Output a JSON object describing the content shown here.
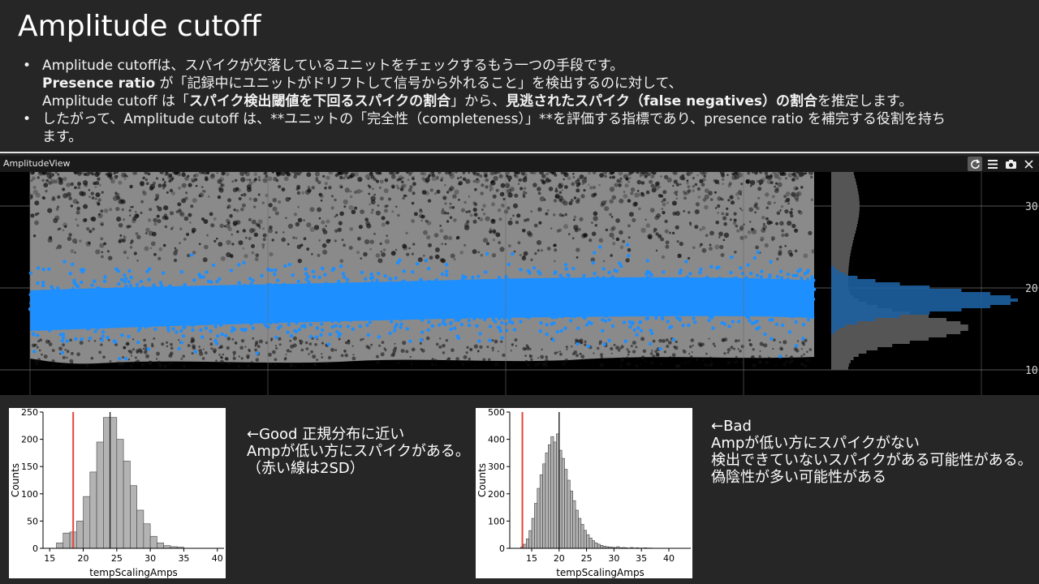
{
  "slide": {
    "title": "Amplitude cutoff",
    "bullets": [
      [
        [
          {
            "t": "Amplitude cutoffは、スパイクが欠落しているユニットをチェックするもう一つの手段です。",
            "b": false
          }
        ],
        [
          {
            "t": "Presence ratio",
            "b": true
          },
          {
            "t": " が「記録中にユニットがドリフトして信号から外れること」を検出するのに対して、",
            "b": false
          }
        ],
        [
          {
            "t": "Amplitude cutoff は「",
            "b": false
          },
          {
            "t": "スパイク検出閾値を下回るスパイクの割合",
            "b": true
          },
          {
            "t": "」から、",
            "b": false
          },
          {
            "t": "見逃されたスパイク（false negatives）の割合",
            "b": true
          },
          {
            "t": "を推定します。",
            "b": false
          }
        ]
      ],
      [
        [
          {
            "t": "したがって、Amplitude cutoff は、**ユニットの「完全性（completeness）」**を評価する指標であり、presence ratio を補完する役割を持ち",
            "b": false
          }
        ],
        [
          {
            "t": "ます。",
            "b": false
          }
        ]
      ]
    ]
  },
  "panel": {
    "title": "AmplitudeView",
    "icons": [
      "refresh-icon",
      "menu-icon",
      "camera-icon",
      "close-icon"
    ],
    "y_ticks": [
      "30",
      "20",
      "10"
    ]
  },
  "colors": {
    "accent": "#1e8fff",
    "scatter_gray": "#8a8a8a",
    "red_line": "#e8443a",
    "bar": "#b3b3b3"
  },
  "chart_data": [
    {
      "type": "bar",
      "x": [
        16.5,
        17.5,
        18.5,
        19.5,
        20.5,
        21.5,
        22.5,
        23.5,
        24.5,
        25.5,
        26.5,
        27.5,
        28.5,
        29.5,
        30.5,
        31.5,
        32.5,
        33.5,
        34.5
      ],
      "values": [
        10,
        28,
        30,
        50,
        95,
        140,
        195,
        240,
        240,
        200,
        160,
        115,
        70,
        45,
        22,
        10,
        5,
        3,
        2
      ],
      "xlim": [
        14,
        41
      ],
      "ylim": [
        0,
        250
      ],
      "xticks": [
        15,
        20,
        25,
        30,
        35,
        40
      ],
      "yticks": [
        0,
        50,
        100,
        150,
        200,
        250
      ],
      "xlabel": "tempScalingAmps",
      "ylabel": "Counts",
      "cutoff_x": 18.5,
      "median_x": 24,
      "bin_width": 1
    },
    {
      "type": "bar",
      "x": [
        13.25,
        13.75,
        14.25,
        14.75,
        15.25,
        15.75,
        16.25,
        16.75,
        17.25,
        17.75,
        18.25,
        18.75,
        19.25,
        19.75,
        20.25,
        20.75,
        21.25,
        21.75,
        22.25,
        22.75,
        23.25,
        23.75,
        24.25,
        24.75,
        25.25,
        25.75,
        26.25,
        26.75,
        27.25,
        27.75,
        28.25,
        28.75,
        29.25,
        29.75,
        30.25,
        30.75,
        31.25,
        31.75,
        32.25,
        32.75,
        33.25,
        33.75,
        34.25,
        34.75,
        35.25,
        35.75,
        36.25,
        36.75
      ],
      "values": [
        5,
        15,
        35,
        65,
        110,
        165,
        220,
        270,
        310,
        350,
        380,
        410,
        390,
        420,
        360,
        330,
        290,
        250,
        210,
        175,
        140,
        110,
        88,
        66,
        50,
        38,
        28,
        20,
        15,
        11,
        8,
        6,
        5,
        4,
        3,
        6,
        2,
        3,
        2,
        1,
        3,
        1,
        2,
        1,
        1,
        2,
        1,
        1
      ],
      "xlim": [
        11,
        44
      ],
      "ylim": [
        0,
        500
      ],
      "xticks": [
        15,
        20,
        25,
        30,
        35,
        40
      ],
      "yticks": [
        0,
        100,
        200,
        300,
        400,
        500
      ],
      "xlabel": "tempScalingAmps",
      "ylabel": "Counts",
      "cutoff_x": 13.3,
      "median_x": 20,
      "bin_width": 0.5
    }
  ],
  "notes": {
    "good": [
      "←Good 正規分布に近い",
      "Ampが低い方にスパイクがある。",
      "（赤い線は2SD）"
    ],
    "bad": [
      "←Bad",
      "Ampが低い方にスパイクがない",
      "検出できていないスパイクがある可能性がある。",
      "偽陰性が多い可能性がある"
    ]
  }
}
